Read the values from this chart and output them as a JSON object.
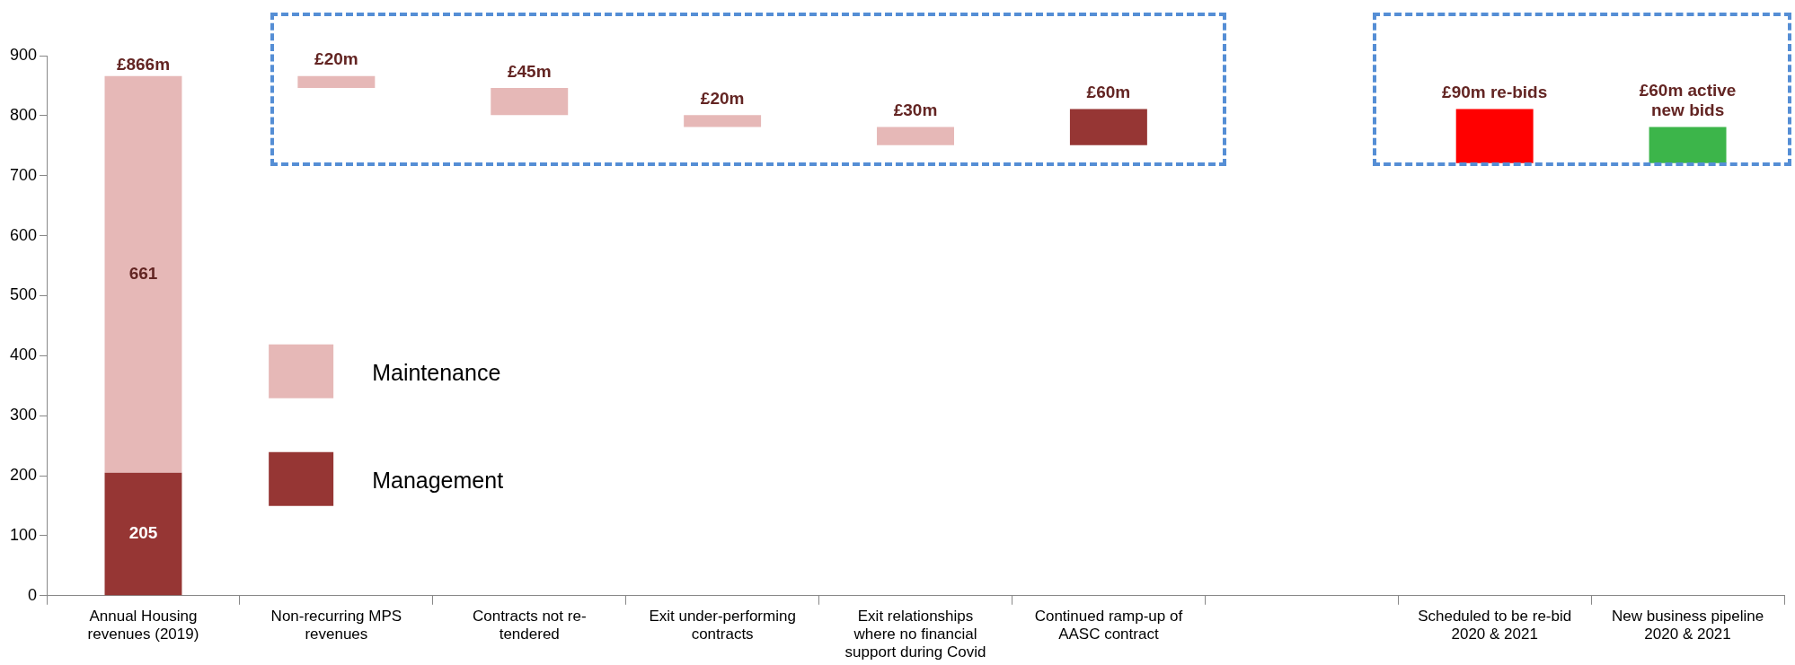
{
  "chart_data": {
    "type": "bar",
    "categories": [
      "Annual Housing revenues (2019)",
      "Non-recurring MPS revenues",
      "Contracts not re-tendered",
      "Exit under-performing contracts",
      "Exit relationships where no financial support during Covid",
      "Continued ramp-up of AASC contract",
      null,
      "Scheduled to be re-bid 2020 & 2021",
      "New business pipeline 2020 & 2021"
    ],
    "series": [
      {
        "name": "Management",
        "color": "#963634",
        "values": [
          205,
          null,
          null,
          null,
          null,
          60,
          null,
          null,
          null
        ],
        "base": [
          0,
          null,
          null,
          null,
          null,
          751,
          null,
          null,
          null
        ],
        "value_labels": [
          "205",
          null,
          null,
          null,
          null,
          "£60m",
          null,
          null,
          null
        ]
      },
      {
        "name": "Maintenance",
        "color": "#e6b8b7",
        "values": [
          661,
          20,
          45,
          20,
          30,
          null,
          null,
          null,
          null
        ],
        "base": [
          205,
          846,
          801,
          781,
          751,
          null,
          null,
          null,
          null
        ],
        "value_labels": [
          "661",
          "£20m",
          "£45m",
          "£20m",
          "£30m",
          null,
          null,
          null,
          null
        ]
      },
      {
        "color": "#ff0000",
        "values": [
          null,
          null,
          null,
          null,
          null,
          null,
          null,
          90,
          null
        ],
        "base": [
          null,
          null,
          null,
          null,
          null,
          null,
          null,
          721,
          null
        ],
        "value_labels": [
          null,
          null,
          null,
          null,
          null,
          null,
          null,
          "£90m re-bids",
          null
        ]
      },
      {
        "color": "#3cb54a",
        "values": [
          null,
          null,
          null,
          null,
          null,
          null,
          null,
          null,
          60
        ],
        "base": [
          null,
          null,
          null,
          null,
          null,
          null,
          null,
          null,
          721
        ],
        "value_labels": [
          null,
          null,
          null,
          null,
          null,
          null,
          null,
          null,
          "£60m active new bids"
        ]
      }
    ],
    "totals": [
      "£866m",
      null,
      null,
      null,
      null,
      null,
      null,
      null,
      null
    ],
    "ylim": [
      0,
      900
    ],
    "yticks": [
      0,
      100,
      200,
      300,
      400,
      500,
      600,
      700,
      800,
      900
    ],
    "grid": false,
    "legend": "bottom left"
  }
}
